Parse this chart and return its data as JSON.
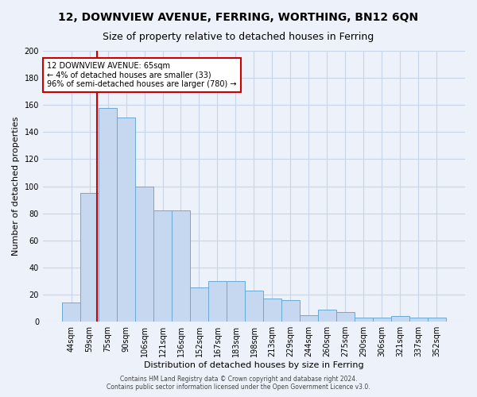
{
  "title": "12, DOWNVIEW AVENUE, FERRING, WORTHING, BN12 6QN",
  "subtitle": "Size of property relative to detached houses in Ferring",
  "xlabel": "Distribution of detached houses by size in Ferring",
  "ylabel": "Number of detached properties",
  "categories": [
    "44sqm",
    "59sqm",
    "75sqm",
    "90sqm",
    "106sqm",
    "121sqm",
    "136sqm",
    "152sqm",
    "167sqm",
    "183sqm",
    "198sqm",
    "213sqm",
    "229sqm",
    "244sqm",
    "260sqm",
    "275sqm",
    "290sqm",
    "306sqm",
    "321sqm",
    "337sqm",
    "352sqm"
  ],
  "values": [
    14,
    95,
    158,
    151,
    100,
    82,
    82,
    25,
    30,
    30,
    23,
    17,
    16,
    5,
    9,
    7,
    3,
    3,
    4,
    3,
    3
  ],
  "bar_color": "#c5d8f0",
  "bar_edge_color": "#6aaad4",
  "vline_color": "#cc0000",
  "annotation_text": "12 DOWNVIEW AVENUE: 65sqm\n← 4% of detached houses are smaller (33)\n96% of semi-detached houses are larger (780) →",
  "annotation_box_color": "#ffffff",
  "annotation_box_edge": "#cc0000",
  "ylim": [
    0,
    200
  ],
  "yticks": [
    0,
    20,
    40,
    60,
    80,
    100,
    120,
    140,
    160,
    180,
    200
  ],
  "grid_color": "#c8d4e8",
  "footer": "Contains HM Land Registry data © Crown copyright and database right 2024.\nContains public sector information licensed under the Open Government Licence v3.0.",
  "bg_color": "#edf2fa",
  "title_fontsize": 10,
  "subtitle_fontsize": 9,
  "ylabel_fontsize": 8,
  "xlabel_fontsize": 8,
  "tick_fontsize": 7,
  "footer_fontsize": 5.5,
  "vline_x_index": 1.43
}
